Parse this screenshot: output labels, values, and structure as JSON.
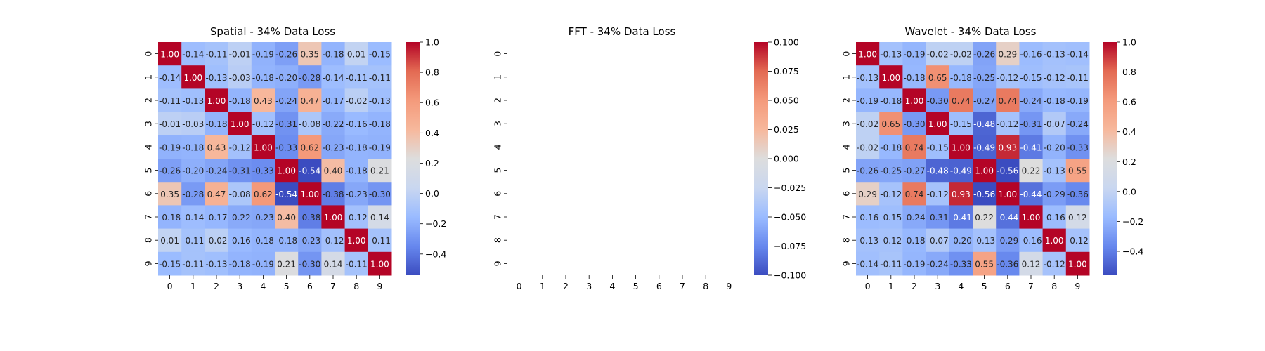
{
  "colormap": {
    "name": "coolwarm",
    "stops": [
      "#3b4cc0",
      "#6788ee",
      "#9abbff",
      "#c9d7f0",
      "#dddddd",
      "#f7b89c",
      "#f49a7b",
      "#e36a53",
      "#b40426"
    ]
  },
  "chart_data": [
    {
      "type": "heatmap",
      "title": "Spatial - 34% Data Loss",
      "x_ticks": [
        "0",
        "1",
        "2",
        "3",
        "4",
        "5",
        "6",
        "7",
        "8",
        "9"
      ],
      "y_ticks": [
        "0",
        "1",
        "2",
        "3",
        "4",
        "5",
        "6",
        "7",
        "8",
        "9"
      ],
      "annotated": true,
      "color_range": [
        -0.54,
        1.0
      ],
      "colorbar_ticks": [
        -0.4,
        -0.2,
        0.0,
        0.2,
        0.4,
        0.6,
        0.8,
        1.0
      ],
      "colorbar_tick_labels": [
        "−0.4",
        "−0.2",
        "0.0",
        "0.2",
        "0.4",
        "0.6",
        "0.8",
        "1.0"
      ],
      "values": [
        [
          1.0,
          -0.14,
          -0.11,
          -0.01,
          -0.19,
          -0.26,
          0.35,
          -0.18,
          0.01,
          -0.15
        ],
        [
          -0.14,
          1.0,
          -0.13,
          -0.03,
          -0.18,
          -0.2,
          -0.28,
          -0.14,
          -0.11,
          -0.11
        ],
        [
          -0.11,
          -0.13,
          1.0,
          -0.18,
          0.43,
          -0.24,
          0.47,
          -0.17,
          -0.02,
          -0.13
        ],
        [
          -0.01,
          -0.03,
          -0.18,
          1.0,
          -0.12,
          -0.31,
          -0.08,
          -0.22,
          -0.16,
          -0.18
        ],
        [
          -0.19,
          -0.18,
          0.43,
          -0.12,
          1.0,
          -0.33,
          0.62,
          -0.23,
          -0.18,
          -0.19
        ],
        [
          -0.26,
          -0.2,
          -0.24,
          -0.31,
          -0.33,
          1.0,
          -0.54,
          0.4,
          -0.18,
          0.21
        ],
        [
          0.35,
          -0.28,
          0.47,
          -0.08,
          0.62,
          -0.54,
          1.0,
          -0.38,
          -0.23,
          -0.3
        ],
        [
          -0.18,
          -0.14,
          -0.17,
          -0.22,
          -0.23,
          0.4,
          -0.38,
          1.0,
          -0.12,
          0.14
        ],
        [
          0.01,
          -0.11,
          -0.02,
          -0.16,
          -0.18,
          -0.18,
          -0.23,
          -0.12,
          1.0,
          -0.11
        ],
        [
          -0.15,
          -0.11,
          -0.13,
          -0.18,
          -0.19,
          0.21,
          -0.3,
          0.14,
          -0.11,
          1.0
        ]
      ]
    },
    {
      "type": "heatmap",
      "title": "FFT - 34% Data Loss",
      "x_ticks": [
        "0",
        "1",
        "2",
        "3",
        "4",
        "5",
        "6",
        "7",
        "8",
        "9"
      ],
      "y_ticks": [
        "0",
        "1",
        "2",
        "3",
        "4",
        "5",
        "6",
        "7",
        "8",
        "9"
      ],
      "annotated": true,
      "color_range": [
        -0.1,
        0.1
      ],
      "colorbar_ticks": [
        -0.1,
        -0.075,
        -0.05,
        -0.025,
        0.0,
        0.025,
        0.05,
        0.075,
        0.1
      ],
      "colorbar_tick_labels": [
        "−0.100",
        "−0.075",
        "−0.050",
        "−0.025",
        "0.000",
        "0.025",
        "0.050",
        "0.075",
        "0.100"
      ],
      "values": []
    },
    {
      "type": "heatmap",
      "title": "Wavelet - 34% Data Loss",
      "x_ticks": [
        "0",
        "1",
        "2",
        "3",
        "4",
        "5",
        "6",
        "7",
        "8",
        "9"
      ],
      "y_ticks": [
        "0",
        "1",
        "2",
        "3",
        "4",
        "5",
        "6",
        "7",
        "8",
        "9"
      ],
      "annotated": true,
      "color_range": [
        -0.56,
        1.0
      ],
      "colorbar_ticks": [
        -0.4,
        -0.2,
        0.0,
        0.2,
        0.4,
        0.6,
        0.8,
        1.0
      ],
      "colorbar_tick_labels": [
        "−0.4",
        "−0.2",
        "0.0",
        "0.2",
        "0.4",
        "0.6",
        "0.8",
        "1.0"
      ],
      "values": [
        [
          1.0,
          -0.13,
          -0.19,
          -0.02,
          -0.02,
          -0.26,
          0.29,
          -0.16,
          -0.13,
          -0.14
        ],
        [
          -0.13,
          1.0,
          -0.18,
          0.65,
          -0.18,
          -0.25,
          -0.12,
          -0.15,
          -0.12,
          -0.11
        ],
        [
          -0.19,
          -0.18,
          1.0,
          -0.3,
          0.74,
          -0.27,
          0.74,
          -0.24,
          -0.18,
          -0.19
        ],
        [
          -0.02,
          0.65,
          -0.3,
          1.0,
          -0.15,
          -0.48,
          -0.12,
          -0.31,
          -0.07,
          -0.24
        ],
        [
          -0.02,
          -0.18,
          0.74,
          -0.15,
          1.0,
          -0.49,
          0.93,
          -0.41,
          -0.2,
          -0.33
        ],
        [
          -0.26,
          -0.25,
          -0.27,
          -0.48,
          -0.49,
          1.0,
          -0.56,
          0.22,
          -0.13,
          0.55
        ],
        [
          0.29,
          -0.12,
          0.74,
          -0.12,
          0.93,
          -0.56,
          1.0,
          -0.44,
          -0.29,
          -0.36
        ],
        [
          -0.16,
          -0.15,
          -0.24,
          -0.31,
          -0.41,
          0.22,
          -0.44,
          1.0,
          -0.16,
          0.12
        ],
        [
          -0.13,
          -0.12,
          -0.18,
          -0.07,
          -0.2,
          -0.13,
          -0.29,
          -0.16,
          1.0,
          -0.12
        ],
        [
          -0.14,
          -0.11,
          -0.19,
          -0.24,
          -0.33,
          0.55,
          -0.36,
          0.12,
          -0.12,
          1.0
        ]
      ]
    }
  ]
}
